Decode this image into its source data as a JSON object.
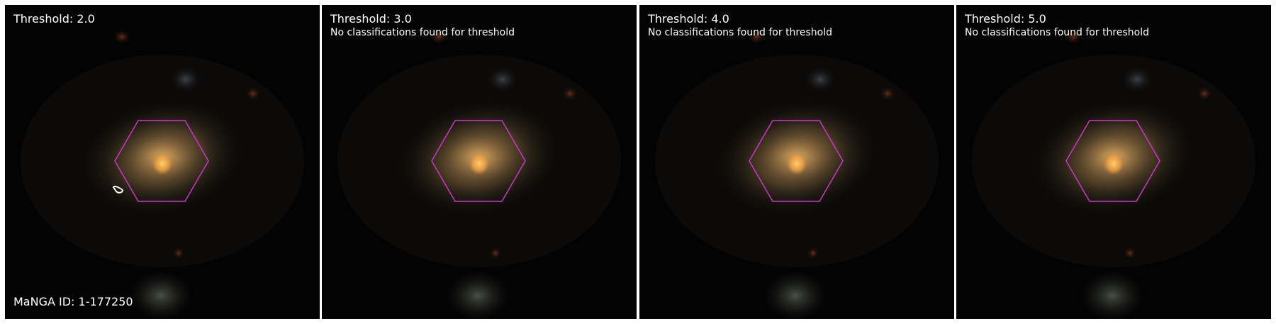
{
  "panels": [
    {
      "title": "Threshold: 2.0",
      "message": "",
      "contour": true
    },
    {
      "title": "Threshold: 3.0",
      "message": "No classifications found for threshold",
      "contour": false
    },
    {
      "title": "Threshold: 4.0",
      "message": "No classifications found for threshold",
      "contour": false
    },
    {
      "title": "Threshold: 5.0",
      "message": "No classifications found for threshold",
      "contour": false
    }
  ],
  "footer": {
    "manga_id": "MaNGA ID: 1-177250"
  },
  "colors": {
    "hexagon": "#c838c8",
    "galaxy_core": "#ffb84a",
    "galaxy_halo": "#a0804a",
    "background": "#030303",
    "text": "#ffffff"
  }
}
